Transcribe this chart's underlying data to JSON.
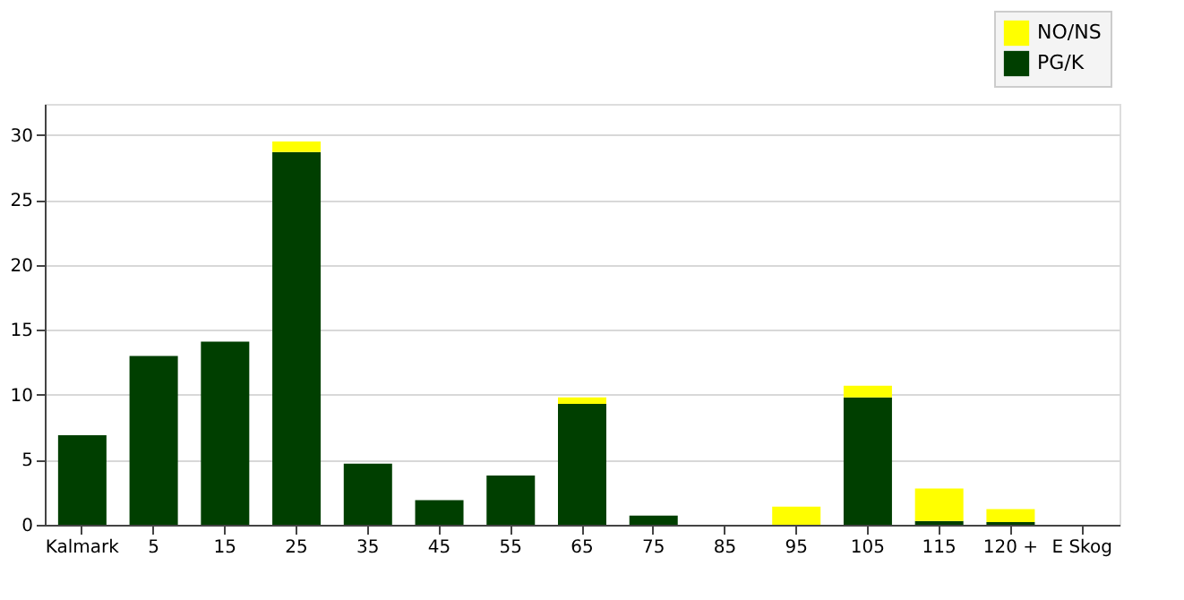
{
  "chart_data": {
    "type": "bar",
    "stacked": true,
    "categories": [
      "Kalmark",
      "5",
      "15",
      "25",
      "35",
      "45",
      "55",
      "65",
      "75",
      "85",
      "95",
      "105",
      "115",
      "120 +",
      "E Skog"
    ],
    "series": [
      {
        "name": "PG/K",
        "color": "#003f00",
        "values": [
          6.9,
          13,
          14.1,
          28.7,
          4.7,
          1.9,
          3.8,
          9.3,
          0.7,
          0,
          0,
          9.8,
          0.3,
          0.2,
          0
        ]
      },
      {
        "name": "NO/NS",
        "color": "#ffff00",
        "values": [
          0,
          0,
          0,
          0.8,
          0,
          0,
          0,
          0.5,
          0,
          0,
          1.4,
          0.9,
          2.5,
          1.0,
          0
        ]
      }
    ],
    "ylim": [
      0,
      32.4
    ],
    "yticks": [
      0,
      5,
      10,
      15,
      20,
      25,
      30
    ],
    "grid": "y",
    "legend": "top right"
  }
}
